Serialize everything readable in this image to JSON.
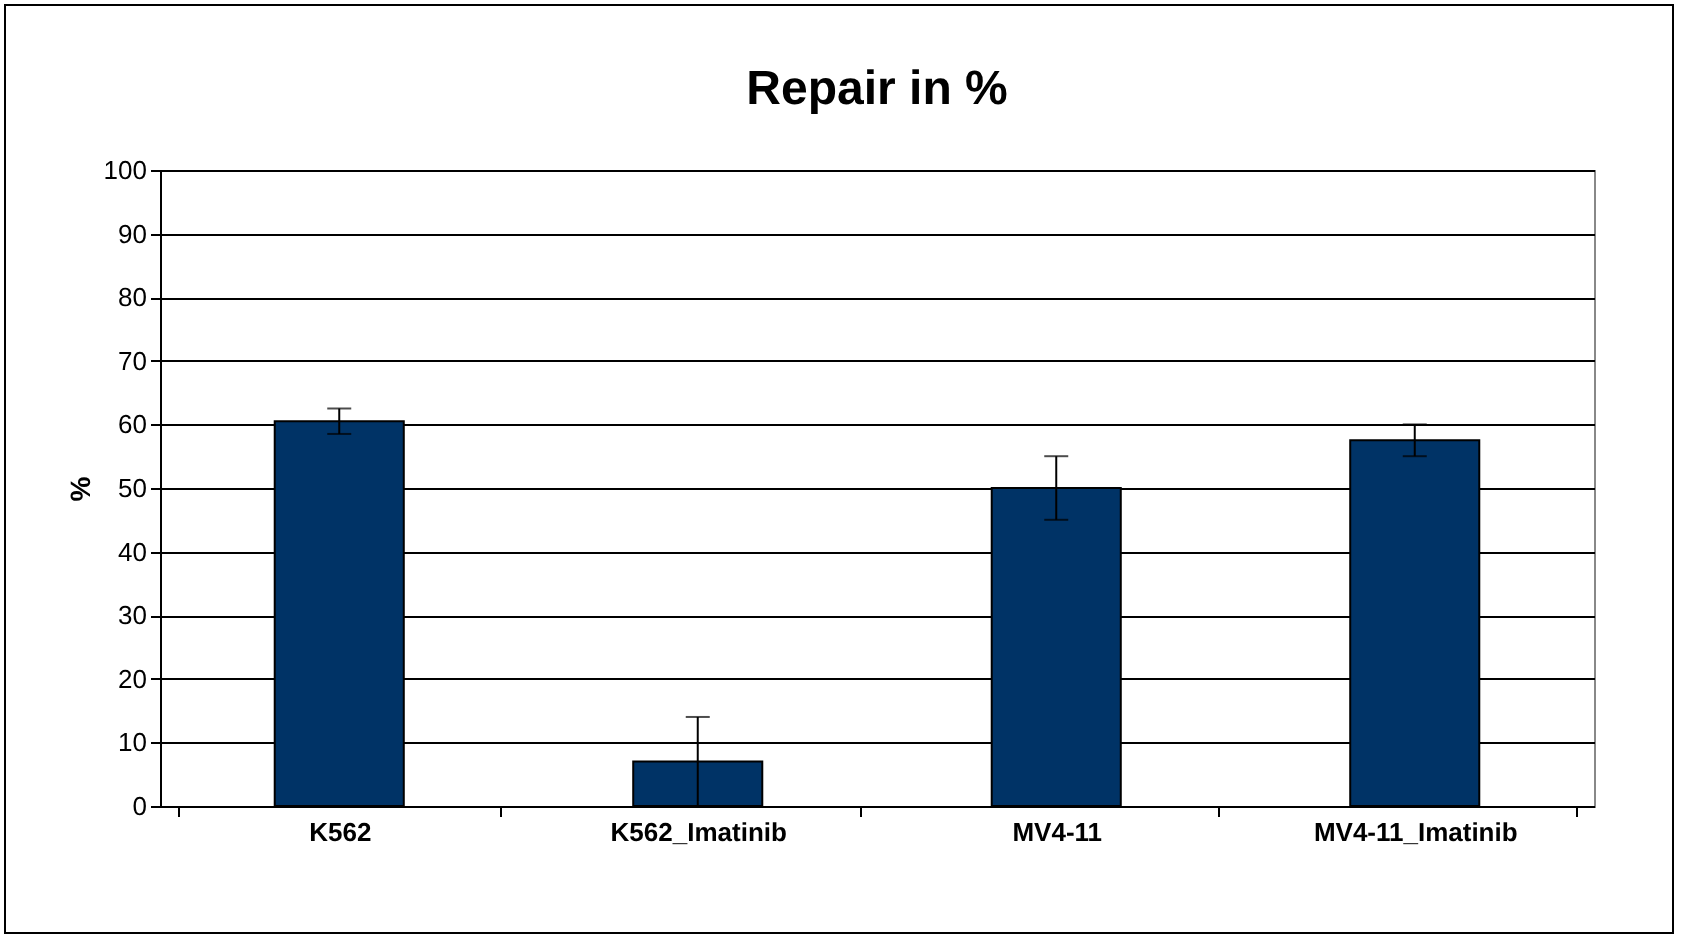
{
  "chart_data": {
    "type": "bar",
    "title": "Repair in %",
    "ylabel": "%",
    "categories": [
      "K562",
      "K562_Imatinib",
      "MV4-11",
      "MV4-11_Imatinib"
    ],
    "values": [
      60.5,
      7,
      50,
      57.5
    ],
    "errors": [
      2,
      7,
      5,
      2.5
    ],
    "color": "#003366",
    "ylim": [
      0,
      100
    ],
    "yticks": [
      0,
      10,
      20,
      30,
      40,
      50,
      60,
      70,
      80,
      90,
      100
    ],
    "grid": "y"
  }
}
